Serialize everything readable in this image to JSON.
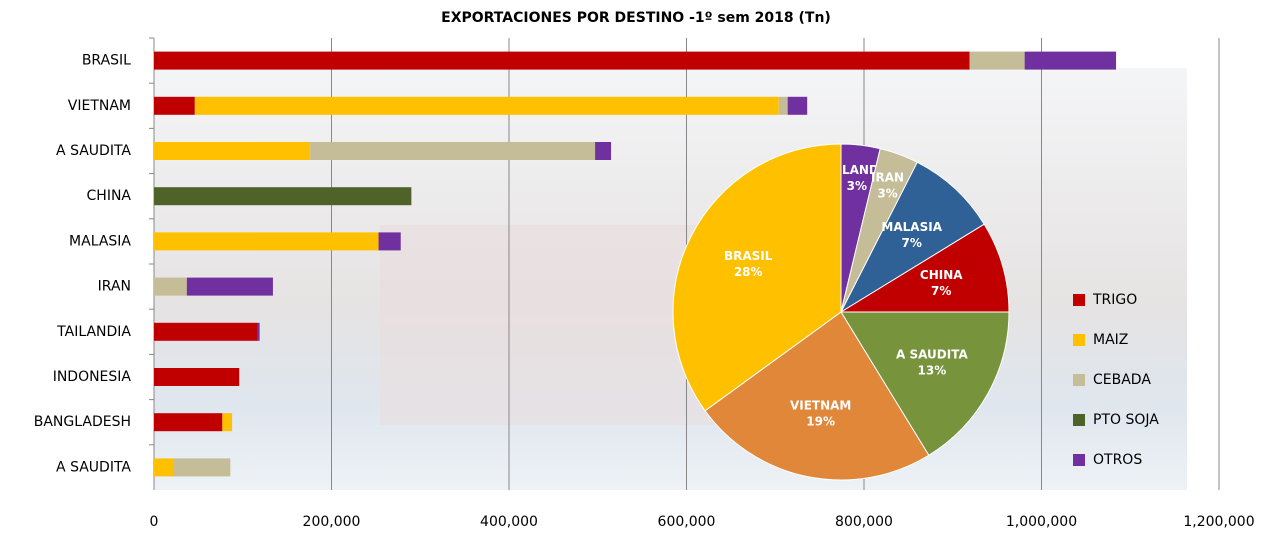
{
  "chart_data": [
    {
      "type": "bar",
      "title": "EXPORTACIONES POR DESTINO -1º sem 2018  (Tn)",
      "categories": [
        "BRASIL",
        "VIETNAM",
        "A SAUDITA",
        "CHINA",
        "MALASIA",
        "IRAN",
        "TAILANDIA",
        "INDONESIA",
        "BANGLADESH",
        "A  SAUDITA"
      ],
      "series": [
        {
          "name": "TRIGO",
          "color": "#c00000",
          "values": [
            919000,
            46000,
            0,
            0,
            0,
            0,
            117000,
            96000,
            77000,
            0
          ]
        },
        {
          "name": "MAIZ",
          "color": "#ffc000",
          "values": [
            0,
            658000,
            176000,
            0,
            253000,
            0,
            0,
            0,
            11000,
            22000
          ]
        },
        {
          "name": "CEBADA",
          "color": "#c4bd97",
          "values": [
            62000,
            10000,
            321000,
            0,
            0,
            37000,
            0,
            0,
            0,
            64000
          ]
        },
        {
          "name": "PTO SOJA",
          "color": "#4f6228",
          "values": [
            0,
            0,
            0,
            290000,
            0,
            0,
            0,
            0,
            0,
            0
          ]
        },
        {
          "name": "OTROS",
          "color": "#7030a0",
          "values": [
            103000,
            22000,
            18000,
            0,
            25000,
            97000,
            2000,
            0,
            0,
            0
          ]
        }
      ],
      "xlim": [
        0,
        1200000
      ],
      "xticks": [
        0,
        {
          "value": 200000,
          "label": "200,000"
        },
        {
          "value": 400000,
          "label": "400,000"
        },
        {
          "value": 600000,
          "label": "600,000"
        },
        {
          "value": 800000,
          "label": "800,000"
        },
        {
          "value": 1000000,
          "label": "1,000,000"
        },
        {
          "value": 1200000,
          "label": "1,200,000"
        }
      ],
      "grid": true,
      "stacked": true,
      "legend": "right"
    },
    {
      "type": "pie",
      "categories": [
        "TAILANDIA",
        "IRAN",
        "MALASIA",
        "CHINA",
        "A SAUDITA",
        "VIETNAM",
        "BRASIL"
      ],
      "values": [
        3,
        3,
        7,
        7,
        13,
        19,
        28
      ],
      "value_labels": [
        "3%",
        "3%",
        "7%",
        "7%",
        "13%",
        "19%",
        "28%"
      ],
      "colors": [
        "#7030a0",
        "#c4bd97",
        "#2f6096",
        "#c00000",
        "#77933c",
        "#e0873a",
        "#ffc000"
      ]
    }
  ]
}
